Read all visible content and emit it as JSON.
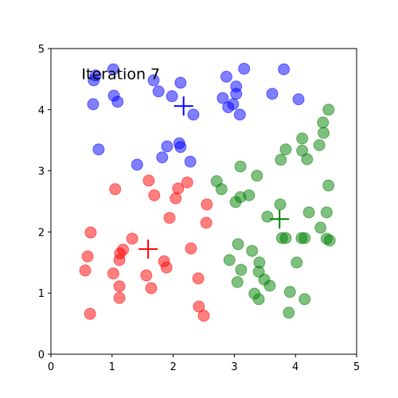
{
  "chart_data": {
    "type": "scatter",
    "annotation": {
      "text": "Iteration 7",
      "x": 0.5,
      "y": 4.5
    },
    "xlim": [
      0,
      5
    ],
    "ylim": [
      0,
      5
    ],
    "xticks": [
      0,
      1,
      2,
      3,
      4,
      5
    ],
    "yticks": [
      0,
      1,
      2,
      3,
      4,
      5
    ],
    "series": [
      {
        "color": "#0000ff",
        "marker": "o",
        "alpha": 0.5,
        "x": [
          1.02,
          0.73,
          0.7,
          1.68,
          2.12,
          1.76,
          1.03,
          1.09,
          0.69,
          1.98,
          2.33,
          3.16,
          2.87,
          3.81,
          3.03,
          3.03,
          2.81,
          3.62,
          4.05,
          2.98,
          2.9,
          3.09,
          2.1,
          2.12,
          1.9,
          0.78,
          1.82,
          2.28,
          1.41
        ],
        "values": [
          4.66,
          4.56,
          4.48,
          4.48,
          4.44,
          4.3,
          4.23,
          4.13,
          4.09,
          4.22,
          3.92,
          4.67,
          4.54,
          4.66,
          4.38,
          4.26,
          4.19,
          4.26,
          4.17,
          4.09,
          4.04,
          3.92,
          3.45,
          3.39,
          3.4,
          3.35,
          3.22,
          3.15,
          3.1
        ]
      },
      {
        "color": "#ff0000",
        "marker": "o",
        "alpha": 0.5,
        "x": [
          1.05,
          1.6,
          2.23,
          2.08,
          1.69,
          2.04,
          2.55,
          1.94,
          2.54,
          0.65,
          1.33,
          1.18,
          1.13,
          0.6,
          1.12,
          2.29,
          1.85,
          1.89,
          0.56,
          1.02,
          1.56,
          2.41,
          1.12,
          1.64,
          1.12,
          2.42,
          2.5,
          0.64
        ],
        "values": [
          2.7,
          2.84,
          2.81,
          2.71,
          2.6,
          2.55,
          2.45,
          2.23,
          2.15,
          1.99,
          1.89,
          1.71,
          1.65,
          1.6,
          1.54,
          1.73,
          1.52,
          1.42,
          1.37,
          1.32,
          1.29,
          1.24,
          1.11,
          1.08,
          0.92,
          0.78,
          0.63,
          0.66
        ]
      },
      {
        "color": "#008000",
        "marker": "o",
        "alpha": 0.5,
        "x": [
          4.54,
          4.45,
          4.46,
          4.11,
          3.84,
          4.11,
          4.39,
          3.76,
          4.19,
          3.1,
          3.37,
          2.71,
          2.79,
          3.1,
          3.24,
          3.02,
          4.54,
          3.75,
          3.54,
          4.22,
          4.51,
          4.41,
          3.78,
          3.84,
          4.1,
          4.15,
          4.51,
          4.56,
          3.06,
          3.29,
          3.41,
          4.02,
          2.92,
          3.11,
          3.4,
          3.49,
          3.58,
          3.05,
          3.91,
          3.33,
          3.4,
          4.15,
          3.89
        ],
        "values": [
          4.0,
          3.79,
          3.62,
          3.53,
          3.35,
          3.33,
          3.42,
          3.18,
          3.19,
          3.07,
          2.92,
          2.83,
          2.7,
          2.57,
          2.6,
          2.49,
          2.76,
          2.45,
          2.25,
          2.32,
          2.32,
          2.07,
          1.9,
          1.9,
          1.9,
          1.9,
          1.89,
          1.86,
          1.8,
          1.69,
          1.5,
          1.5,
          1.54,
          1.38,
          1.35,
          1.22,
          1.12,
          1.18,
          1.02,
          0.99,
          0.9,
          0.9,
          0.68
        ]
      },
      {
        "color": "#0000ff",
        "marker": "+",
        "alpha": 1,
        "x": [
          2.17
        ],
        "values": [
          4.06
        ]
      },
      {
        "color": "#ff0000",
        "marker": "+",
        "alpha": 1,
        "x": [
          1.59
        ],
        "values": [
          1.72
        ]
      },
      {
        "color": "#008000",
        "marker": "+",
        "alpha": 1,
        "x": [
          3.74
        ],
        "values": [
          2.21
        ]
      }
    ]
  }
}
